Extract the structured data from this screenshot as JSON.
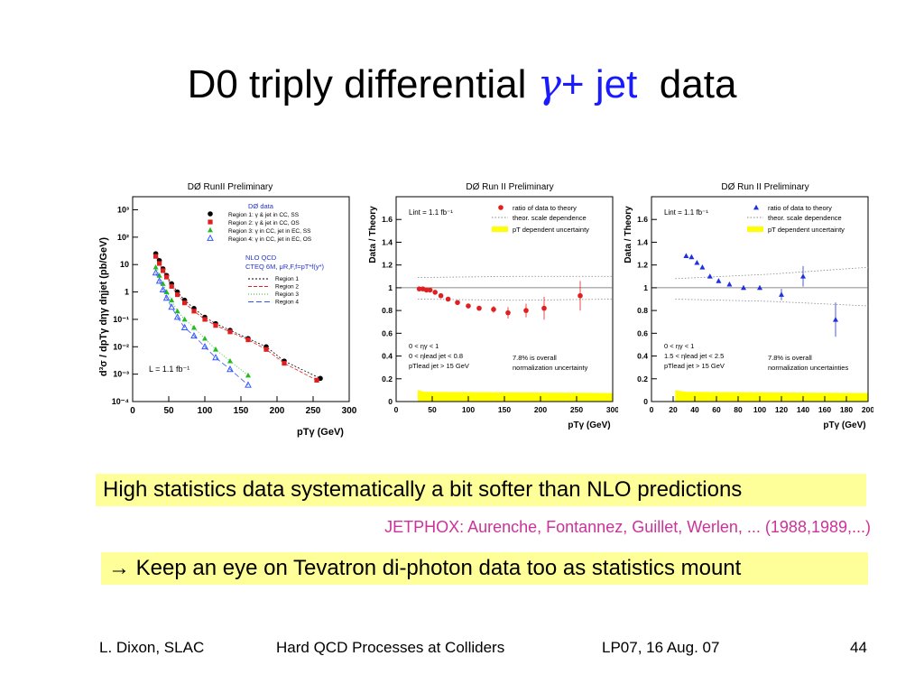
{
  "slide": {
    "title_pre": "D0 triply differential",
    "title_gamma": "γ",
    "title_plus": "+",
    "title_jet": "jet",
    "title_post": "data",
    "highlight1": "High statistics data systematically a bit softer than NLO predictions",
    "citation": "JETPHOX: Aurenche, Fontannez, Guillet, Werlen, ... (1988,1989,...)",
    "highlight2": "→ Keep an eye on Tevatron di-photon data too as statistics mount",
    "footer": {
      "author": "L. Dixon, SLAC",
      "talk": "Hard QCD Processes at Colliders",
      "venue": "LP07, 16 Aug. 07",
      "page": "44"
    }
  },
  "chart_data": [
    {
      "type": "scatter",
      "title": "DØ RunII Preliminary",
      "ylabel": "d³σ / dpTγ dηγ dηjet (pb/GeV)",
      "xlabel": "pTγ (GeV)",
      "xlim": [
        0,
        300
      ],
      "ylim": [
        0.0001,
        3000
      ],
      "log_y": true,
      "xticks": [
        "0",
        "50",
        "100",
        "150",
        "200",
        "250",
        "300"
      ],
      "yticks": [
        "10³",
        "10²",
        "10",
        "1",
        "10⁻¹",
        "10⁻²",
        "10⁻³",
        "10⁻⁴"
      ],
      "legend_title": "DØ data",
      "legend": [
        "Region 1: γ & jet in CC, SS",
        "Region 2: γ & jet in CC, OS",
        "Region 3: γ in CC, jet in EC, SS",
        "Region 4: γ in CC, jet in EC, OS"
      ],
      "theory_title": "NLO QCD",
      "theory_sub": "CTEQ 6M,  μR,F,f=pT*f(y*)",
      "theory_legend": [
        "Region 1",
        "Region 2",
        "Region 3",
        "Region 4"
      ],
      "lumi": "L = 1.1 fb⁻¹",
      "series": [
        {
          "name": "Region 1",
          "color": "#000000",
          "marker": "circle",
          "x": [
            32,
            37,
            42,
            47,
            54,
            62,
            72,
            85,
            100,
            115,
            135,
            160,
            185,
            210,
            260
          ],
          "y": [
            25,
            14,
            7,
            4,
            2,
            1,
            0.5,
            0.25,
            0.12,
            0.07,
            0.04,
            0.02,
            0.01,
            0.003,
            0.0007
          ]
        },
        {
          "name": "Region 2",
          "color": "#e02020",
          "marker": "square",
          "x": [
            32,
            37,
            42,
            47,
            54,
            62,
            72,
            85,
            100,
            115,
            135,
            160,
            185,
            210,
            255
          ],
          "y": [
            20,
            11,
            6,
            3.5,
            1.6,
            0.8,
            0.4,
            0.2,
            0.1,
            0.06,
            0.035,
            0.018,
            0.008,
            0.0025,
            0.0006
          ]
        },
        {
          "name": "Region 3",
          "color": "#22bb22",
          "marker": "triangle",
          "x": [
            32,
            37,
            42,
            47,
            54,
            62,
            72,
            85,
            100,
            115,
            135,
            160
          ],
          "y": [
            8,
            4,
            2,
            1,
            0.5,
            0.2,
            0.1,
            0.05,
            0.02,
            0.008,
            0.003,
            0.0009
          ]
        },
        {
          "name": "Region 4",
          "color": "#3355ff",
          "marker": "triangle-open",
          "x": [
            32,
            37,
            42,
            47,
            54,
            62,
            72,
            85,
            100,
            115,
            135,
            160
          ],
          "y": [
            5,
            2.5,
            1.2,
            0.6,
            0.28,
            0.12,
            0.05,
            0.025,
            0.01,
            0.004,
            0.0015,
            0.0004
          ]
        }
      ]
    },
    {
      "type": "scatter",
      "title": "DØ Run II Preliminary",
      "ylabel": "Data / Theory",
      "xlabel": "pTγ (GeV)",
      "xlim": [
        0,
        300
      ],
      "ylim": [
        0,
        1.8
      ],
      "xticks": [
        "0",
        "50",
        "100",
        "150",
        "200",
        "250",
        "300"
      ],
      "yticks": [
        "0",
        "0.2",
        "0.4",
        "0.6",
        "0.8",
        "1",
        "1.2",
        "1.4",
        "1.6"
      ],
      "lumi": "Lint = 1.1 fb⁻¹",
      "legend": [
        "ratio of data to theory",
        "theor. scale dependence",
        "pT dependent uncertainty"
      ],
      "cuts": [
        "0 < ηγ < 1",
        "0 < ηlead jet < 0.8",
        "pTlead jet > 15 GeV"
      ],
      "note": [
        "7.8% is overall",
        "normalization uncertainty"
      ],
      "series": [
        {
          "name": "ratio of data to theory",
          "color": "#e02020",
          "x": [
            32,
            37,
            42,
            47,
            54,
            62,
            72,
            85,
            100,
            115,
            135,
            155,
            180,
            205,
            255
          ],
          "y": [
            0.99,
            0.99,
            0.98,
            0.98,
            0.96,
            0.93,
            0.9,
            0.87,
            0.84,
            0.82,
            0.81,
            0.78,
            0.8,
            0.82,
            0.93
          ],
          "err": [
            0.01,
            0.01,
            0.01,
            0.01,
            0.01,
            0.01,
            0.01,
            0.02,
            0.02,
            0.02,
            0.03,
            0.05,
            0.06,
            0.1,
            0.13
          ]
        }
      ]
    },
    {
      "type": "scatter",
      "title": "DØ Run II Preliminary",
      "ylabel": "Data / Theory",
      "xlabel": "pTγ (GeV)",
      "xlim": [
        0,
        200
      ],
      "ylim": [
        0,
        1.8
      ],
      "xticks": [
        "0",
        "20",
        "40",
        "60",
        "80",
        "100",
        "120",
        "140",
        "160",
        "180",
        "200"
      ],
      "yticks": [
        "0",
        "0.2",
        "0.4",
        "0.6",
        "0.8",
        "1",
        "1.2",
        "1.4",
        "1.6"
      ],
      "lumi": "Lint = 1.1 fb⁻¹",
      "legend": [
        "ratio of data to theory",
        "theor. scale dependence",
        "pT dependent uncertainty"
      ],
      "cuts": [
        "0 < ηγ < 1",
        "1.5 < ηlead jet < 2.5",
        "pTlead jet > 15 GeV"
      ],
      "note": [
        "7.8% is overall",
        "normalization uncertainties"
      ],
      "series": [
        {
          "name": "ratio of data to theory",
          "color": "#2030e0",
          "x": [
            32,
            37,
            42,
            47,
            54,
            62,
            72,
            85,
            100,
            120,
            140,
            170
          ],
          "y": [
            1.28,
            1.27,
            1.22,
            1.18,
            1.1,
            1.06,
            1.03,
            1.0,
            1.0,
            0.94,
            1.1,
            0.72
          ],
          "err": [
            0.01,
            0.01,
            0.01,
            0.01,
            0.01,
            0.01,
            0.01,
            0.02,
            0.02,
            0.05,
            0.09,
            0.15
          ]
        }
      ]
    }
  ]
}
